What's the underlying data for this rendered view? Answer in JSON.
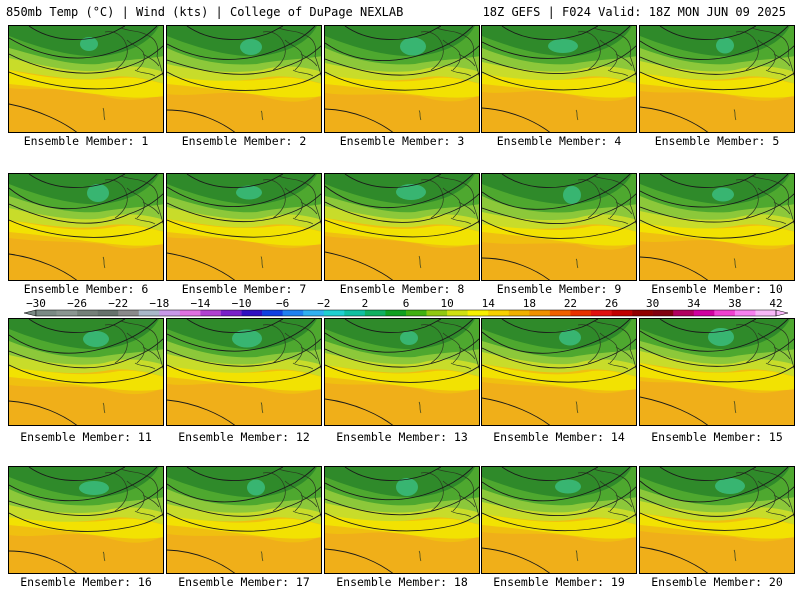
{
  "header": {
    "left": "850mb Temp (°C) | Wind (kts) | College of DuPage NEXLAB",
    "right": "18Z GEFS | F024 Valid: 18Z MON JUN 09 2025"
  },
  "panels": [
    {
      "label": "Ensemble Member: 1"
    },
    {
      "label": "Ensemble Member: 2"
    },
    {
      "label": "Ensemble Member: 3"
    },
    {
      "label": "Ensemble Member: 4"
    },
    {
      "label": "Ensemble Member: 5"
    },
    {
      "label": "Ensemble Member: 6"
    },
    {
      "label": "Ensemble Member: 7"
    },
    {
      "label": "Ensemble Member: 8"
    },
    {
      "label": "Ensemble Member: 9"
    },
    {
      "label": "Ensemble Member: 10"
    },
    {
      "label": "Ensemble Member: 11"
    },
    {
      "label": "Ensemble Member: 12"
    },
    {
      "label": "Ensemble Member: 13"
    },
    {
      "label": "Ensemble Member: 14"
    },
    {
      "label": "Ensemble Member: 15"
    },
    {
      "label": "Ensemble Member: 16"
    },
    {
      "label": "Ensemble Member: 17"
    },
    {
      "label": "Ensemble Member: 18"
    },
    {
      "label": "Ensemble Member: 19"
    },
    {
      "label": "Ensemble Member: 20"
    }
  ],
  "colorbar": {
    "tick_labels": [
      "−30",
      "−26",
      "−22",
      "−18",
      "−14",
      "−10",
      "−6",
      "−2",
      "2",
      "6",
      "10",
      "14",
      "18",
      "22",
      "26",
      "30",
      "34",
      "38",
      "42"
    ],
    "colors": [
      "#7a8a84",
      "#8a9690",
      "#748078",
      "#66726c",
      "#8a8a8a",
      "#a8b8c8",
      "#c898e8",
      "#e070e0",
      "#b040d0",
      "#7a20c8",
      "#3010c0",
      "#1040e0",
      "#2080f0",
      "#30b0f0",
      "#20d0d0",
      "#10c0a0",
      "#10b060",
      "#10a020",
      "#40b010",
      "#90c810",
      "#d0e010",
      "#f8f000",
      "#f8d000",
      "#f0b000",
      "#f09000",
      "#f06000",
      "#e83000",
      "#e01010",
      "#c00000",
      "#900000",
      "#800010",
      "#b00060",
      "#d000a0",
      "#f040d0",
      "#f880f0",
      "#f8b8f8"
    ]
  },
  "map_palette": {
    "dark_green": "#2f8a2a",
    "green": "#4ea82f",
    "light_green": "#8cc83a",
    "yellow_green": "#c8dc2a",
    "yellow": "#f2e800",
    "gold": "#f0c010",
    "orange": "#f0a020",
    "teal": "#3cc890"
  }
}
